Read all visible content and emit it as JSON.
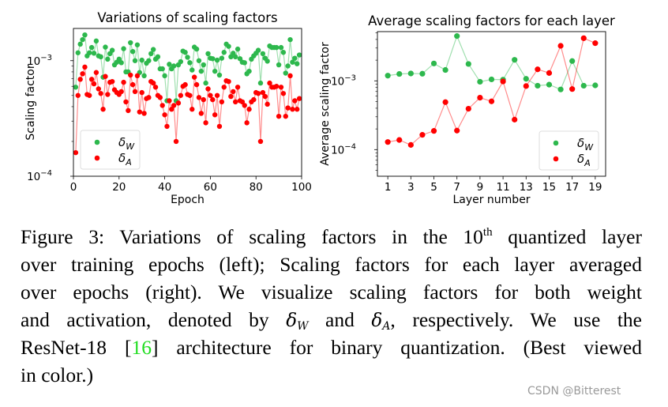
{
  "colors": {
    "w": "#2db84d",
    "a": "#ff0000",
    "ref": "#22dd22"
  },
  "chart_data": [
    {
      "type": "line",
      "title": "Variations of scaling factors",
      "xlabel": "Epoch",
      "ylabel": "Scaling factor",
      "xlim": [
        0,
        100
      ],
      "ylim": [
        0.0001,
        0.0019
      ],
      "yscale": "log",
      "x_ticks": [
        "0",
        "20",
        "40",
        "60",
        "80",
        "100"
      ],
      "y_ticks": [
        {
          "value": 0.0001,
          "base": "10",
          "exp": "−4"
        },
        {
          "value": 0.001,
          "base": "10",
          "exp": "−3"
        }
      ],
      "legend": {
        "placement": "lower-left",
        "entries": [
          {
            "sym": "δ",
            "sub": "W"
          },
          {
            "sym": "δ",
            "sub": "A"
          }
        ]
      },
      "x_start": 1,
      "series": [
        {
          "key": "w",
          "values": [
            0.00059,
            0.00117,
            0.00139,
            0.00152,
            0.00167,
            0.0011,
            0.00117,
            0.0013,
            0.00116,
            0.00148,
            0.0011,
            0.00108,
            0.00072,
            0.00131,
            0.00103,
            0.00115,
            0.00123,
            0.00092,
            0.00097,
            0.00103,
            0.00096,
            0.00127,
            0.0008,
            0.0008,
            0.00143,
            0.0012,
            0.001,
            0.00137,
            0.00079,
            0.00101,
            0.00074,
            0.00095,
            0.001,
            0.00115,
            0.00125,
            0.00103,
            0.00108,
            0.00085,
            0.00085,
            0.00074,
            0.00045,
            0.00093,
            0.00085,
            0.0009,
            0.00045,
            0.00092,
            0.00098,
            0.00121,
            0.00118,
            0.00107,
            0.00096,
            0.00083,
            0.00131,
            0.00126,
            0.001,
            0.00081,
            0.00092,
            0.00064,
            0.00115,
            0.00105,
            0.00104,
            0.00081,
            0.00101,
            0.00075,
            0.00105,
            0.00118,
            0.00139,
            0.00133,
            0.00108,
            0.00116,
            0.00108,
            0.00126,
            0.00104,
            0.00097,
            0.00096,
            0.00077,
            0.00081,
            0.00103,
            0.0011,
            0.00116,
            0.00123,
            0.00064,
            0.00115,
            0.00105,
            0.00099,
            0.00134,
            0.0013,
            0.0013,
            0.0013,
            0.00092,
            0.0013,
            0.00118,
            0.00078,
            0.0009,
            0.00152,
            0.00097,
            0.00105,
            0.00094,
            0.00112
          ]
        },
        {
          "key": "a",
          "values": [
            0.00016,
            0.0005,
            0.00069,
            0.00077,
            0.00088,
            0.00051,
            0.0005,
            0.00069,
            0.00063,
            0.00079,
            0.00057,
            0.00052,
            0.00038,
            0.00073,
            0.00051,
            0.00065,
            0.00066,
            0.00056,
            0.00053,
            0.00051,
            0.00054,
            0.00065,
            0.00044,
            0.00037,
            0.00075,
            0.00062,
            0.00054,
            0.00074,
            0.00036,
            0.00053,
            0.00035,
            0.00047,
            0.00048,
            0.00066,
            0.00064,
            0.00059,
            0.0005,
            0.00048,
            0.00041,
            0.00034,
            0.00027,
            0.00045,
            0.00038,
            0.00041,
            0.0002,
            0.00043,
            0.0005,
            0.0006,
            0.00062,
            0.00051,
            0.0005,
            0.00038,
            0.00072,
            0.00062,
            0.00048,
            0.00035,
            0.00046,
            0.00029,
            0.00057,
            0.0005,
            0.00046,
            0.00034,
            0.0005,
            0.00027,
            0.00044,
            0.00059,
            0.00067,
            0.00066,
            0.00049,
            0.00054,
            0.00044,
            0.00059,
            0.00045,
            0.00044,
            0.00041,
            0.00029,
            0.00038,
            0.00044,
            0.00046,
            0.00053,
            0.00052,
            0.0002,
            0.00053,
            0.00049,
            0.00042,
            0.00064,
            0.00059,
            0.00059,
            0.0006,
            0.00033,
            0.00059,
            0.00052,
            0.00033,
            0.00039,
            0.00074,
            0.00038,
            0.00045,
            0.00038,
            0.00047
          ]
        }
      ]
    },
    {
      "type": "line",
      "title": "Average scaling factors for each layer",
      "xlabel": "Layer number",
      "ylabel": "Average scaling factor",
      "xlim": [
        0.1,
        19.9
      ],
      "ylim": [
        4.1e-05,
        0.0052
      ],
      "yscale": "log",
      "x_ticks": [
        "1",
        "3",
        "5",
        "7",
        "9",
        "11",
        "13",
        "15",
        "17",
        "19"
      ],
      "y_ticks": [
        {
          "value": 0.0001,
          "base": "10",
          "exp": "−4"
        },
        {
          "value": 0.001,
          "base": "10",
          "exp": "−3"
        }
      ],
      "legend": {
        "placement": "lower-right",
        "entries": [
          {
            "sym": "δ",
            "sub": "W"
          },
          {
            "sym": "δ",
            "sub": "A"
          }
        ]
      },
      "x_start": 1,
      "series": [
        {
          "key": "w",
          "values": [
            0.00119,
            0.00126,
            0.00128,
            0.00127,
            0.00179,
            0.00144,
            0.00448,
            0.00176,
            0.00097,
            0.00105,
            0.00104,
            0.00202,
            0.00107,
            0.00085,
            0.00088,
            0.00075,
            0.00194,
            0.00085,
            0.00086
          ]
        },
        {
          "key": "a",
          "values": [
            0.000129,
            0.000138,
            0.000117,
            0.000164,
            0.000187,
            0.00049,
            0.000189,
            0.000393,
            0.000569,
            0.000503,
            0.00098,
            0.000273,
            0.00084,
            0.00147,
            0.0013,
            0.00323,
            0.00076,
            0.00417,
            0.00353
          ]
        }
      ]
    }
  ],
  "caption": {
    "l1a": "Figure 3: Variations of scaling factors in the 10",
    "l1sup": "th",
    "l1b": " quantized layer",
    "l2": "over training epochs (left); Scaling factors for each layer averaged",
    "l3": "over epochs (right).  We visualize scaling factors for both weight",
    "l4a": "and activation, denoted by ",
    "dsym": "δ",
    "subW": "W",
    "l4b": " and ",
    "subA": "A",
    "l4c": ", respectively.  We use the",
    "l5a": "ResNet-18 [",
    "ref": "16",
    "l5b": "] architecture for binary quantization. (Best viewed",
    "l6": "in color.)"
  },
  "watermark": "CSDN @Bitterest"
}
